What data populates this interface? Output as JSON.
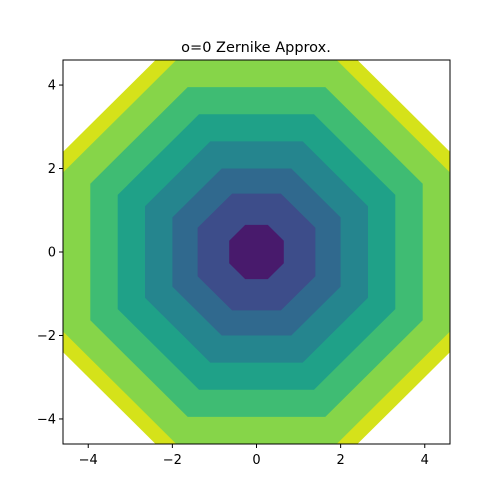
{
  "chart_data": {
    "type": "heatmap",
    "title": "o=0 Zernike Approx.",
    "xlabel": "",
    "ylabel": "",
    "xlim": [
      -4.6,
      4.6
    ],
    "ylim": [
      -4.6,
      4.6
    ],
    "xticks": [
      -4,
      -2,
      0,
      2,
      4
    ],
    "yticks": [
      -4,
      -2,
      0,
      2,
      4
    ],
    "xtick_labels": [
      "−4",
      "−2",
      "0",
      "2",
      "4"
    ],
    "ytick_labels": [
      "−4",
      "−2",
      "0",
      "2",
      "4"
    ],
    "grid": false,
    "colormap": "viridis",
    "levels": [
      {
        "radius": 4.95,
        "color": "#d5e21a"
      },
      {
        "radius": 4.6,
        "color": "#86d549"
      },
      {
        "radius": 3.95,
        "color": "#3fbc73"
      },
      {
        "radius": 3.3,
        "color": "#1fa188"
      },
      {
        "radius": 2.65,
        "color": "#25858e"
      },
      {
        "radius": 2.0,
        "color": "#30698e"
      },
      {
        "radius": 1.4,
        "color": "#3d4d8a"
      },
      {
        "radius": 0.65,
        "color": "#481a6c"
      }
    ]
  }
}
